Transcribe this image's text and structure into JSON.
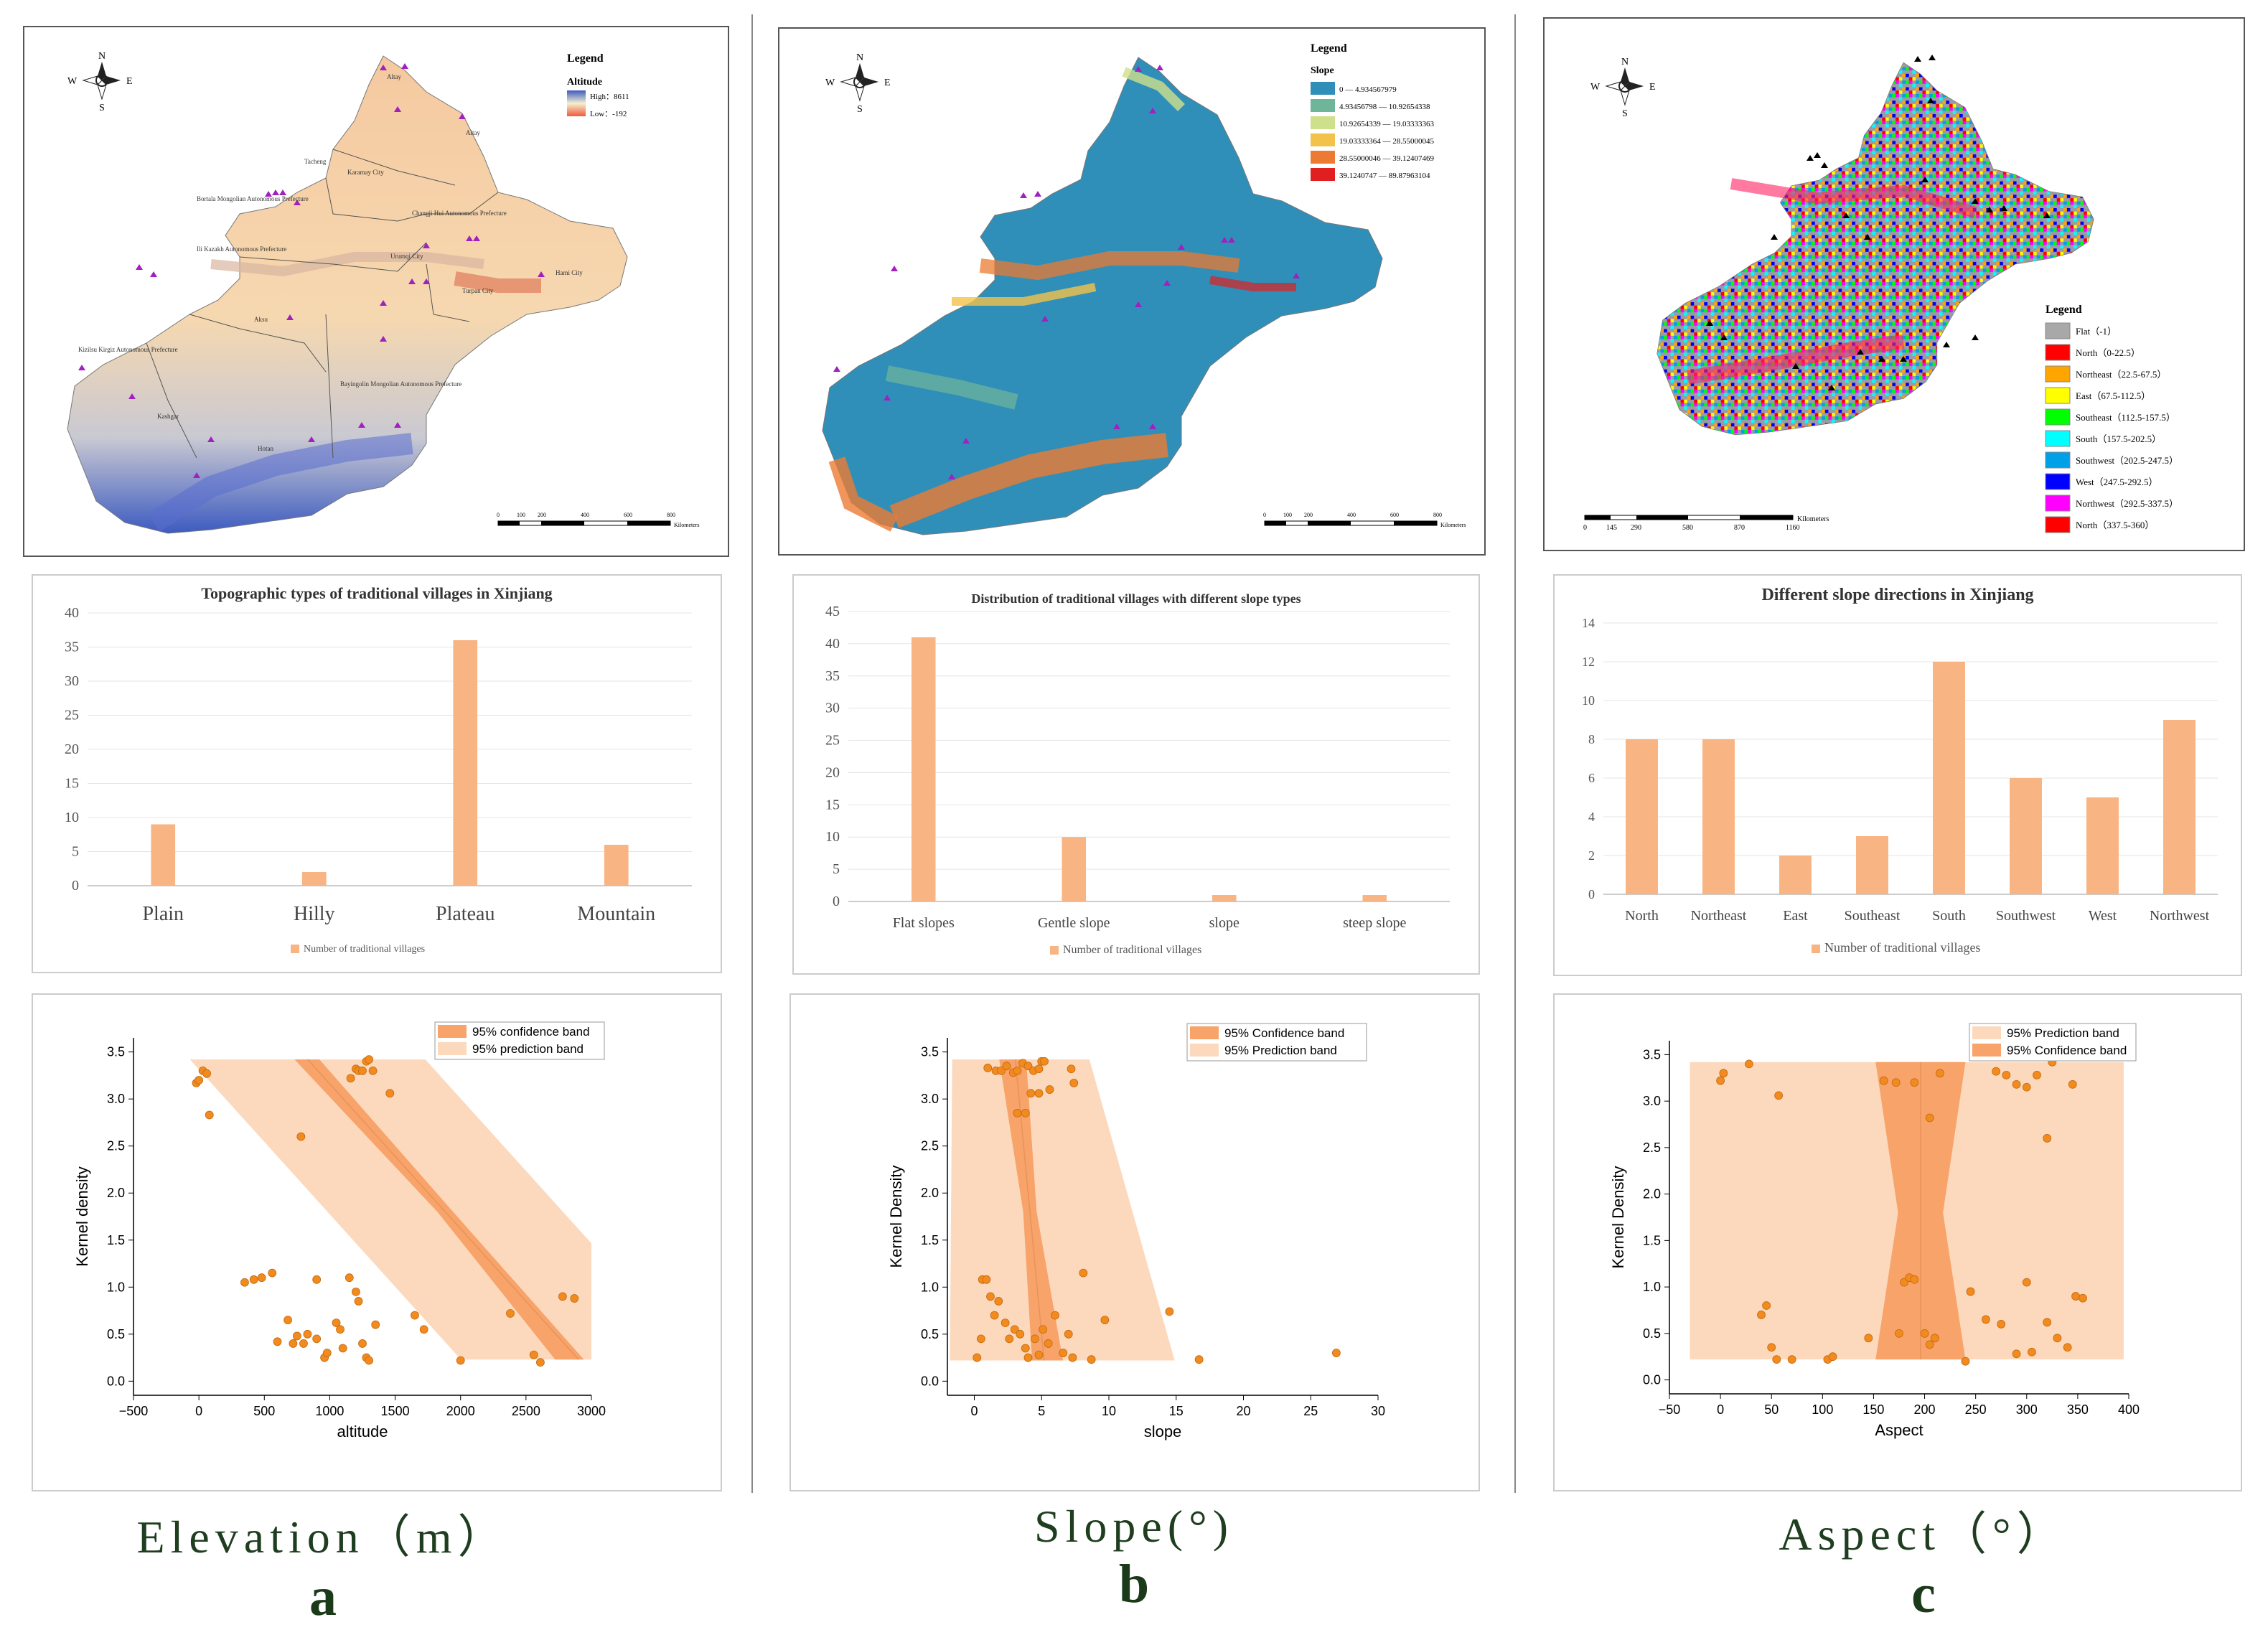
{
  "maps": {
    "a": {
      "legend_title": "Legend",
      "layer_title": "Altitude",
      "high_label": "High：8611",
      "low_label": "Low：-192",
      "compass": {
        "n": "N",
        "s": "S",
        "e": "E",
        "w": "W"
      },
      "scale_label": "Kilometers",
      "scale_ticks": [
        "0",
        "100",
        "200",
        "400",
        "600",
        "800"
      ],
      "place_labels": [
        "Altay",
        "Altay",
        "Tacheng",
        "Karamay City",
        "Bortala Mongolian Autonomous Prefecture",
        "Changji Hui Autonomous Prefecture",
        "Ili Kazakh Autonomous Prefecture",
        "Urumqi City",
        "Turpan City",
        "Hami City",
        "Aksu",
        "Kizilsu Kirgiz Autonomous Prefecture",
        "Kashgar",
        "Bayingolin Mongolian Autonomous Prefecture",
        "Hotan"
      ]
    },
    "b": {
      "legend_title": "Legend",
      "layer_title": "Slope",
      "classes": [
        {
          "label": "0 — 4.934567979",
          "color": "#2f8fb8"
        },
        {
          "label": "4.93456798 — 10.92654338",
          "color": "#6fb59a"
        },
        {
          "label": "10.92654339 — 19.03333363",
          "color": "#cfe08c"
        },
        {
          "label": "19.03333364 — 28.55000045",
          "color": "#f2c24a"
        },
        {
          "label": "28.55000046 — 39.12407469",
          "color": "#ec7a32"
        },
        {
          "label": "39.1240747 — 89.87963104",
          "color": "#e02020"
        }
      ],
      "compass": {
        "n": "N",
        "s": "S",
        "e": "E",
        "w": "W"
      },
      "scale_label": "Kilometers",
      "scale_ticks": [
        "0",
        "100",
        "200",
        "400",
        "600",
        "800"
      ]
    },
    "c": {
      "legend_title": "Legend",
      "classes": [
        {
          "label": "Flat（-1）",
          "color": "#a8a8a8"
        },
        {
          "label": "North（0-22.5）",
          "color": "#ff0000"
        },
        {
          "label": "Northeast（22.5-67.5）",
          "color": "#ffa500"
        },
        {
          "label": "East（67.5-112.5）",
          "color": "#ffff00"
        },
        {
          "label": "Southeast（112.5-157.5）",
          "color": "#00ff00"
        },
        {
          "label": "South（157.5-202.5）",
          "color": "#00ffff"
        },
        {
          "label": "Southwest（202.5-247.5）",
          "color": "#00a0e8"
        },
        {
          "label": "West（247.5-292.5）",
          "color": "#0000ff"
        },
        {
          "label": "Northwest（292.5-337.5）",
          "color": "#ff00ff"
        },
        {
          "label": "North（337.5-360）",
          "color": "#ff0000"
        }
      ],
      "compass": {
        "n": "N",
        "s": "S",
        "e": "E",
        "w": "W"
      },
      "scale_label": "Kilometers",
      "scale_ticks": [
        "0",
        "145",
        "290",
        "580",
        "870",
        "1160"
      ]
    }
  },
  "captions": {
    "a": {
      "title": "Elevation（m）",
      "letter": "a"
    },
    "b": {
      "title": "Slope(°)",
      "letter": "b"
    },
    "c": {
      "title": "Aspect（°）",
      "letter": "c"
    }
  },
  "colors": {
    "bar": "#f8b483",
    "conf": "#f7a36a",
    "pred": "#fcd9bd",
    "point": "#f28a1e"
  },
  "chart_data": [
    {
      "id": "bar_a",
      "type": "bar",
      "title": "Topographic types of traditional villages in Xinjiang",
      "categories": [
        "Plain",
        "Hilly",
        "Plateau",
        "Mountain"
      ],
      "values": [
        9,
        2,
        36,
        6
      ],
      "ylim": [
        0,
        40
      ],
      "yticks": [
        0,
        5,
        10,
        15,
        20,
        25,
        30,
        35,
        40
      ],
      "legend": "Number of traditional villages"
    },
    {
      "id": "bar_b",
      "type": "bar",
      "title": "Distribution of traditional villages with different slope types",
      "categories": [
        "Flat slopes",
        "Gentle slope",
        "slope",
        "steep slope"
      ],
      "values": [
        41,
        10,
        1,
        1
      ],
      "ylim": [
        0,
        45
      ],
      "yticks": [
        0,
        5,
        10,
        15,
        20,
        25,
        30,
        35,
        40,
        45
      ],
      "legend": "Number of traditional villages"
    },
    {
      "id": "bar_c",
      "type": "bar",
      "title": "Different slope directions in Xinjiang",
      "categories": [
        "North",
        "Northeast",
        "East",
        "Southeast",
        "South",
        "Southwest",
        "West",
        "Northwest"
      ],
      "values": [
        8,
        8,
        2,
        3,
        12,
        6,
        5,
        9
      ],
      "ylim": [
        0,
        14
      ],
      "yticks": [
        0,
        2,
        4,
        6,
        8,
        10,
        12,
        14
      ],
      "legend": "Number of traditional villages"
    },
    {
      "id": "scatter_a",
      "type": "scatter",
      "xlabel": "altitude",
      "ylabel": "Kernel density",
      "xlim": [
        -500,
        3000
      ],
      "ylim": [
        -0.15,
        3.65
      ],
      "xticks": [
        -500,
        0,
        500,
        1000,
        1500,
        2000,
        2500,
        3000
      ],
      "yticks": [
        0.0,
        0.5,
        1.0,
        1.5,
        2.0,
        2.5,
        3.0,
        3.5
      ],
      "legend": [
        "95% confidence band",
        "95% prediction band"
      ],
      "fit": {
        "y_at_x0": 4.7,
        "slope": -0.00154
      },
      "conf_halfwidth": {
        "y0": [
          180,
          40
        ],
        "y1": [
          100,
          90
        ]
      },
      "pred_halfwidth": 900,
      "band_y": [
        0.23,
        3.42
      ],
      "x": [
        -20,
        0,
        30,
        60,
        80,
        780,
        1160,
        1200,
        1220,
        1250,
        1280,
        1300,
        1330,
        1460,
        350,
        420,
        480,
        560,
        900,
        600,
        680,
        720,
        750,
        800,
        830,
        900,
        960,
        980,
        1050,
        1080,
        1100,
        1150,
        1200,
        1220,
        1250,
        1280,
        1300,
        1350,
        1650,
        1720,
        2000,
        2380,
        2560,
        2610,
        2780,
        2870
      ],
      "y": [
        3.17,
        3.2,
        3.3,
        3.27,
        2.83,
        2.6,
        3.22,
        3.32,
        3.3,
        3.3,
        3.4,
        3.42,
        3.3,
        3.06,
        1.05,
        1.08,
        1.1,
        1.15,
        1.08,
        0.42,
        0.65,
        0.4,
        0.48,
        0.4,
        0.5,
        0.45,
        0.25,
        0.3,
        0.62,
        0.55,
        0.35,
        1.1,
        0.95,
        0.85,
        0.4,
        0.25,
        0.22,
        0.6,
        0.7,
        0.55,
        0.22,
        0.72,
        0.28,
        0.2,
        0.9,
        0.88
      ]
    },
    {
      "id": "scatter_b",
      "type": "scatter",
      "xlabel": "slope",
      "ylabel": "Kernel Density",
      "xlim": [
        -2,
        30
      ],
      "ylim": [
        -0.15,
        3.65
      ],
      "xticks": [
        0,
        5,
        10,
        15,
        20,
        25,
        30
      ],
      "yticks": [
        0.0,
        0.5,
        1.0,
        1.5,
        2.0,
        2.5,
        3.0,
        3.5
      ],
      "legend": [
        "95% Confidence band",
        "95% Prediction band"
      ],
      "fit": {
        "y_at_x0": 8.0,
        "slope": -1.5
      },
      "band_y": [
        0.22,
        3.42
      ],
      "x": [
        1.0,
        1.6,
        2.0,
        2.4,
        2.9,
        3.2,
        3.6,
        4.0,
        4.4,
        4.8,
        5.0,
        5.2,
        5.6,
        7.2,
        7.4,
        3.2,
        3.8,
        4.2,
        4.8,
        0.6,
        0.9,
        1.2,
        1.5,
        1.8,
        2.3,
        2.6,
        3.0,
        3.4,
        3.8,
        4.0,
        4.5,
        4.8,
        5.1,
        5.5,
        6.0,
        6.6,
        7.0,
        7.3,
        8.7,
        9.7,
        14.5,
        16.7,
        26.9,
        0.2,
        0.5,
        8.1
      ],
      "y": [
        3.33,
        3.3,
        3.3,
        3.35,
        3.28,
        3.3,
        3.38,
        3.35,
        3.3,
        3.32,
        3.4,
        3.4,
        3.1,
        3.32,
        3.17,
        2.85,
        2.85,
        3.06,
        3.06,
        1.08,
        1.08,
        0.9,
        0.7,
        0.85,
        0.62,
        0.45,
        0.55,
        0.5,
        0.35,
        0.25,
        0.45,
        0.28,
        0.55,
        0.4,
        0.7,
        0.3,
        0.5,
        0.25,
        0.23,
        0.65,
        0.74,
        0.23,
        0.3,
        0.25,
        0.45,
        1.15
      ]
    },
    {
      "id": "scatter_c",
      "type": "scatter",
      "xlabel": "Aspect",
      "ylabel": "Kernel Density",
      "xlim": [
        -50,
        400
      ],
      "ylim": [
        -0.15,
        3.65
      ],
      "xticks": [
        -50,
        0,
        50,
        100,
        150,
        200,
        250,
        300,
        350,
        400
      ],
      "yticks": [
        0.0,
        0.5,
        1.0,
        1.5,
        2.0,
        2.5,
        3.0,
        3.5
      ],
      "legend": [
        "95% Prediction band",
        "95% Confidence band"
      ],
      "fit": {
        "y_at_x0": 1.8,
        "slope": 0.0
      },
      "band_y": [
        0.22,
        3.42
      ],
      "x": [
        0,
        3,
        28,
        57,
        160,
        172,
        190,
        205,
        215,
        270,
        280,
        290,
        300,
        310,
        320,
        325,
        345,
        40,
        45,
        50,
        55,
        70,
        105,
        110,
        145,
        175,
        180,
        185,
        190,
        200,
        205,
        210,
        240,
        245,
        260,
        275,
        290,
        300,
        305,
        320,
        330,
        340,
        348,
        355
      ],
      "y": [
        3.22,
        3.3,
        3.4,
        3.06,
        3.22,
        3.2,
        3.2,
        2.82,
        3.3,
        3.32,
        3.28,
        3.18,
        3.15,
        3.28,
        2.6,
        3.42,
        3.18,
        0.7,
        0.8,
        0.35,
        0.22,
        0.22,
        0.22,
        0.25,
        0.45,
        0.5,
        1.05,
        1.1,
        1.08,
        0.5,
        0.38,
        0.45,
        0.2,
        0.95,
        0.65,
        0.6,
        0.28,
        1.05,
        0.3,
        0.62,
        0.45,
        0.35,
        0.9,
        0.88
      ]
    }
  ]
}
